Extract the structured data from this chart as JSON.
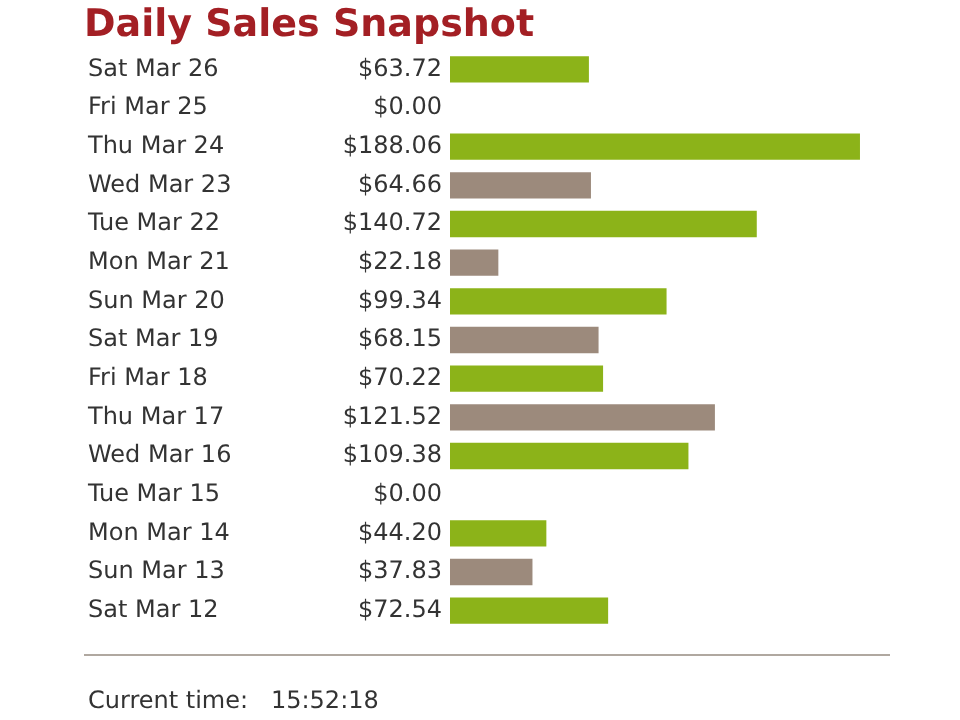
{
  "chart_data": {
    "type": "bar",
    "orientation": "horizontal",
    "title": "Daily Sales Snapshot",
    "categories": [
      "Sat Mar 26",
      "Fri Mar 25",
      "Thu Mar 24",
      "Wed Mar 23",
      "Tue Mar 22",
      "Mon Mar 21",
      "Sun Mar 20",
      "Sat Mar 19",
      "Fri Mar 18",
      "Thu Mar 17",
      "Wed Mar 16",
      "Tue Mar 15",
      "Mon Mar 14",
      "Sun Mar 13",
      "Sat Mar 12"
    ],
    "values": [
      63.72,
      0,
      188.06,
      64.66,
      140.72,
      22.18,
      99.34,
      68.15,
      70.22,
      121.52,
      109.38,
      0,
      44.2,
      37.83,
      72.54
    ],
    "value_labels": [
      "$63.72",
      "$0.00",
      "$188.06",
      "$64.66",
      "$140.72",
      "$22.18",
      "$99.34",
      "$68.15",
      "$70.22",
      "$121.52",
      "$109.38",
      "$0.00",
      "$44.20",
      "$37.83",
      "$72.54"
    ],
    "colors": [
      "#8cb319",
      "#9c8a7c",
      "#8cb319",
      "#9c8a7c",
      "#8cb319",
      "#9c8a7c",
      "#8cb319",
      "#9c8a7c",
      "#8cb319",
      "#9c8a7c",
      "#8cb319",
      "#9c8a7c",
      "#8cb319",
      "#9c8a7c",
      "#8cb319"
    ],
    "annotations": [
      "Current time:   15:52:18"
    ]
  }
}
